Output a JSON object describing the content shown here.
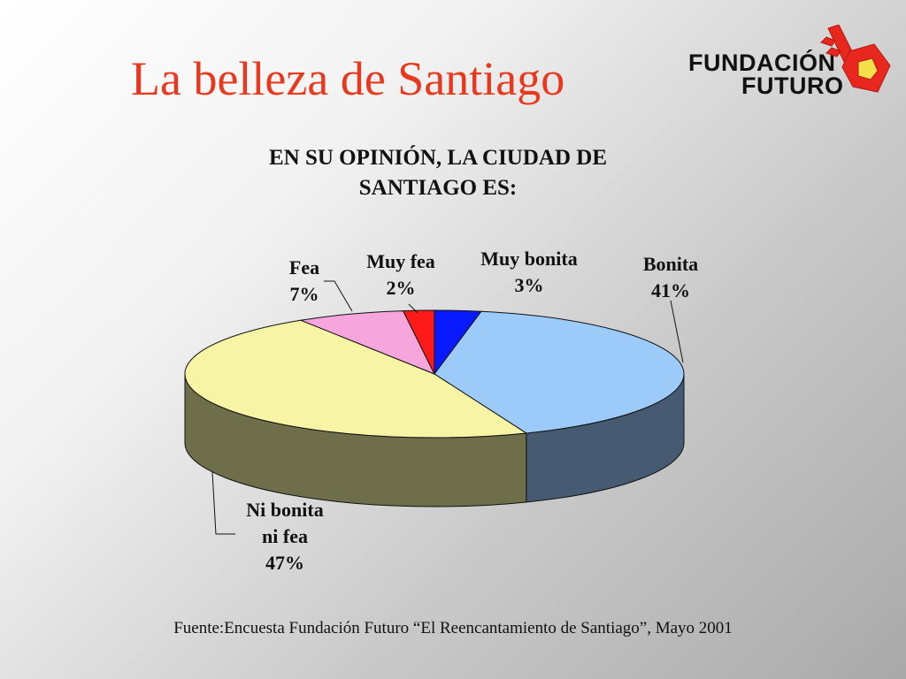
{
  "slide": {
    "title": "La belleza de Santiago",
    "source": "Fuente:Encuesta Fundación Futuro  “El Reencantamiento de Santiago”, Mayo 2001"
  },
  "logo": {
    "line1": "FUNDACIÓN",
    "line2": "FUTURO",
    "accent_color": "#e8281f"
  },
  "chart_data": {
    "type": "pie",
    "title": "EN SU OPINIÓN, LA CIUDAD DE SANTIAGO ES:",
    "slices": [
      {
        "label": [
          "Muy bonita",
          "3%"
        ],
        "value": 3,
        "color": "#0a1aff"
      },
      {
        "label": [
          "Bonita",
          "41%"
        ],
        "value": 41,
        "color": "#9ccbfa"
      },
      {
        "label": [
          "Ni bonita",
          "ni fea",
          "47%"
        ],
        "value": 47,
        "color": "#f7f4a6"
      },
      {
        "label": [
          "Fea",
          "7%"
        ],
        "value": 7,
        "color": "#f7a6dd"
      },
      {
        "label": [
          "Muy fea",
          "2%"
        ],
        "value": 2,
        "color": "#ff1a1a"
      }
    ],
    "three_d": true,
    "legend": "none"
  }
}
